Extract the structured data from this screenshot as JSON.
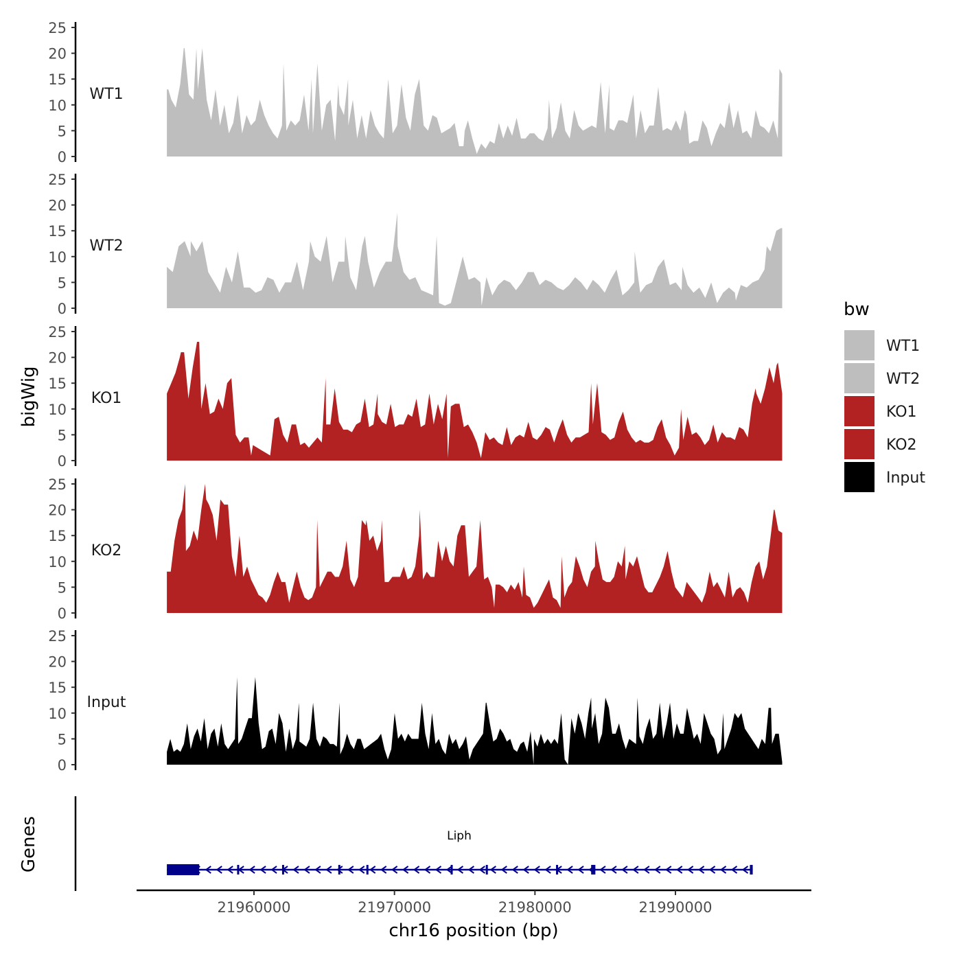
{
  "chart_data": {
    "type": "area",
    "chromosome": "chr16",
    "xlabel": "chr16 position (bp)",
    "ylabel": "bigWig",
    "genes_label": "Genes",
    "legend_title": "bw",
    "x_range": [
      21952000,
      21999000
    ],
    "data_range": [
      21953800,
      21997600
    ],
    "x_ticks": [
      21960000,
      21970000,
      21980000,
      21990000
    ],
    "x_tick_labels": [
      "21960000",
      "21970000",
      "21980000",
      "21990000"
    ],
    "ylim": [
      0,
      25
    ],
    "y_ticks": [
      0,
      5,
      10,
      15,
      20,
      25
    ],
    "y_tick_labels": [
      "0",
      "5",
      "10",
      "15",
      "20",
      "25"
    ],
    "colors": {
      "WT1": "#bebebe",
      "WT2": "#bebebe",
      "KO1": "#b22222",
      "KO2": "#b22222",
      "Input": "#000000",
      "gene": "#00008b"
    },
    "series": [
      {
        "name": "WT1",
        "values": [
          13,
          11,
          9.5,
          14,
          21,
          12,
          11,
          13,
          21,
          11,
          7,
          13,
          6,
          10,
          4.5,
          6.5,
          12,
          4.5,
          8,
          6,
          7,
          11,
          8,
          6,
          4.5,
          3.5,
          6,
          5,
          7,
          6,
          7,
          12,
          5,
          4.5,
          18,
          5,
          10,
          11,
          3,
          10,
          8,
          6,
          11,
          3.5,
          8,
          3.5,
          9,
          6,
          4.5,
          3.5,
          15,
          4.5,
          6,
          14,
          7.5,
          5,
          12,
          15,
          6,
          5,
          8,
          7.5,
          4.5,
          5,
          5.5,
          6.5,
          2,
          2,
          7,
          3.5,
          0.5,
          2.5,
          1.5,
          3,
          2.5,
          6.5,
          3.5,
          6,
          4,
          7.5,
          3.5,
          3.5,
          4.5,
          4.5,
          3.5,
          3,
          5.5,
          3.5,
          5.5,
          10.5,
          5,
          3.5,
          9,
          6,
          5,
          5.5,
          6,
          5.5,
          14.5,
          4.5,
          5.5,
          5,
          7,
          7,
          6.5,
          10.5,
          3.5,
          9,
          4.5,
          6,
          6,
          13.5,
          5,
          5.5,
          5,
          7,
          5,
          9,
          2.5,
          3,
          3,
          7,
          5.5,
          2,
          4.5,
          6.5,
          5.5,
          10.5,
          5.5,
          9,
          4.5,
          5,
          3.5,
          9,
          6,
          5.5,
          4.5,
          7,
          3.5,
          16
        ],
        "peaks": [
          [
            21953900,
            13
          ],
          [
            21955000,
            21
          ],
          [
            21955900,
            21
          ],
          [
            21962100,
            18
          ],
          [
            21964100,
            15
          ],
          [
            21966000,
            14
          ],
          [
            21966700,
            15
          ],
          [
            21975000,
            5
          ],
          [
            21981000,
            11
          ],
          [
            21985300,
            14
          ],
          [
            21987000,
            12
          ],
          [
            21990800,
            8
          ],
          [
            21997400,
            17
          ]
        ]
      },
      {
        "name": "WT2",
        "values": [
          8,
          7,
          12,
          13,
          10,
          11,
          13,
          7,
          5,
          3,
          8,
          5,
          11,
          4,
          4,
          3,
          3.5,
          6,
          5.5,
          3,
          5,
          5,
          9,
          3.5,
          9,
          10,
          9,
          14,
          5,
          9,
          9,
          6,
          3.5,
          12,
          9,
          4,
          7,
          9,
          9,
          12,
          7,
          5.5,
          6,
          3.5,
          3,
          2.5,
          1,
          0.5,
          1,
          5.5,
          10,
          5.5,
          6,
          5,
          6,
          2.5,
          4.5,
          5.5,
          5,
          3.5,
          5,
          7,
          7,
          4.5,
          5.5,
          5,
          4,
          3.5,
          4.5,
          6,
          5,
          3.5,
          5.5,
          4.5,
          3,
          5.5,
          7.5,
          2.5,
          3.5,
          5,
          3,
          4.5,
          5,
          8,
          9.5,
          4.5,
          5,
          3.5,
          4.5,
          3,
          4,
          2,
          5,
          1,
          3,
          4,
          3,
          4.5,
          4,
          5,
          5.5,
          7.5,
          11,
          15,
          15.5
        ],
        "peaks": [
          [
            21955500,
            13
          ],
          [
            21964000,
            13
          ],
          [
            21966500,
            14
          ],
          [
            21967900,
            14
          ],
          [
            21970200,
            18.5
          ],
          [
            21973000,
            14
          ],
          [
            21976200,
            0.5
          ],
          [
            21987100,
            11
          ],
          [
            21990500,
            8
          ],
          [
            21994300,
            1.5
          ],
          [
            21996500,
            12
          ],
          [
            21997500,
            15.5
          ]
        ]
      },
      {
        "name": "KO1",
        "values": [
          13,
          15,
          17,
          20,
          21,
          12,
          18,
          23,
          10,
          15,
          9,
          9.5,
          12,
          10,
          15,
          16,
          5,
          3.5,
          4.5,
          4.5,
          3,
          2.5,
          2,
          1.5,
          1,
          8,
          8.5,
          5,
          3.5,
          7,
          7,
          3,
          3.5,
          2.5,
          3.5,
          4.5,
          3.5,
          7,
          7,
          14,
          7.5,
          6,
          6,
          5.5,
          7,
          7.5,
          12,
          6.5,
          7,
          9,
          7.5,
          7,
          11,
          6.5,
          7,
          7,
          9,
          8.5,
          12,
          6.5,
          7,
          13,
          7,
          11,
          8,
          13,
          10.5,
          11,
          11,
          6.5,
          7,
          5.5,
          3.5,
          0.5,
          5.5,
          4,
          4.5,
          3.5,
          3,
          6.5,
          3,
          4.5,
          5,
          4.5,
          7.5,
          4.5,
          4,
          5,
          6.5,
          6,
          3.5,
          6,
          8,
          5,
          3.5,
          4.5,
          4.5,
          5,
          5.5,
          7,
          15,
          5.5,
          5,
          4,
          4.5,
          7.5,
          9.5,
          6,
          4.5,
          3.5,
          4,
          3.5,
          3.5,
          4,
          6.5,
          8,
          4.5,
          3,
          1,
          2.5,
          4,
          8.5,
          5,
          5.5,
          4.5,
          3,
          4,
          7,
          3.5,
          5.5,
          4.5,
          4.5,
          4,
          6.5,
          6,
          4.5,
          11,
          13,
          11,
          14,
          18,
          15,
          19,
          13
        ],
        "peaks": [
          [
            21954800,
            21
          ],
          [
            21956100,
            23
          ],
          [
            21959800,
            1
          ],
          [
            21965100,
            16
          ],
          [
            21968800,
            13
          ],
          [
            21973800,
            0.5
          ],
          [
            21984000,
            15
          ],
          [
            21990400,
            10
          ],
          [
            21995700,
            14
          ],
          [
            21996700,
            18
          ],
          [
            21997200,
            18.5
          ]
        ]
      },
      {
        "name": "KO2",
        "values": [
          8,
          8,
          14,
          18,
          20,
          12,
          13,
          16,
          14,
          20,
          25,
          21,
          19,
          14,
          22,
          21,
          21,
          11,
          7,
          15,
          7,
          9,
          6.5,
          5,
          3.5,
          3,
          2,
          3.5,
          6,
          8,
          6,
          6,
          2,
          5,
          8,
          5,
          3,
          2.5,
          3,
          5,
          5,
          6.5,
          8,
          8,
          7,
          7,
          9,
          14,
          6.5,
          5,
          7,
          18,
          17,
          14,
          15,
          12,
          14,
          6,
          6,
          7,
          7,
          7,
          9,
          6.5,
          7,
          9,
          15,
          6.5,
          8,
          7,
          7,
          14,
          10,
          13,
          10,
          9,
          15,
          17,
          17,
          7,
          8,
          9,
          18,
          6.5,
          7,
          5,
          5.5,
          5.5,
          5,
          4,
          5.5,
          4.5,
          6,
          3,
          3.5,
          3,
          1,
          2,
          3.5,
          5,
          6.5,
          3,
          2.5,
          1,
          3,
          5,
          6,
          11,
          9,
          6.5,
          5,
          8,
          9,
          10,
          6.5,
          6,
          6,
          7,
          10,
          9,
          6.5,
          10,
          9,
          11,
          8,
          5,
          4,
          4,
          5.5,
          7,
          9,
          12,
          8,
          5,
          4,
          3,
          6,
          5,
          4,
          3,
          2,
          4,
          8,
          5,
          6,
          4.5,
          3,
          8,
          3,
          4.5,
          5,
          4,
          2,
          6,
          9,
          10,
          6.5,
          9,
          15,
          20,
          16,
          15.5
        ],
        "peaks": [
          [
            21955100,
            25
          ],
          [
            21956600,
            22
          ],
          [
            21964500,
            18
          ],
          [
            21968000,
            18
          ],
          [
            21969100,
            18
          ],
          [
            21971800,
            20
          ],
          [
            21977100,
            1
          ],
          [
            21979200,
            9
          ],
          [
            21981900,
            11
          ],
          [
            21984300,
            14
          ],
          [
            21986400,
            13
          ],
          [
            21997000,
            20
          ]
        ]
      },
      {
        "name": "Input",
        "values": [
          2.5,
          5,
          2.5,
          3,
          2.5,
          4,
          8,
          3,
          5.5,
          7,
          4.5,
          9,
          3,
          6,
          7,
          3.5,
          8,
          4,
          3,
          4,
          5,
          4,
          5,
          7,
          9,
          9,
          17,
          8,
          3,
          3.5,
          6.5,
          7,
          4,
          10,
          8,
          2.5,
          7,
          3,
          5,
          4.5,
          4,
          3.5,
          5,
          12,
          5,
          3.5,
          5.5,
          5,
          4,
          4,
          3.5,
          2,
          3.5,
          6,
          4,
          3,
          5,
          5,
          3,
          3.5,
          4,
          4.5,
          5,
          6,
          3,
          1,
          3,
          10,
          5,
          6,
          4.5,
          6,
          5,
          5,
          5,
          12,
          6,
          3,
          10,
          4,
          5,
          3,
          2,
          6,
          4,
          5,
          3,
          4,
          5.5,
          1,
          3,
          4,
          5,
          6,
          12,
          8,
          4.5,
          5,
          7,
          6,
          4.5,
          5,
          3,
          2.5,
          4,
          4.5,
          2.5,
          6.5,
          5,
          3.5,
          6,
          4,
          5,
          4,
          5,
          4,
          10,
          1,
          0,
          9,
          6,
          10,
          8,
          5,
          10,
          7,
          10,
          4,
          6,
          13,
          11,
          6,
          6,
          8,
          5,
          3,
          5,
          4.5,
          4,
          5.5,
          4,
          7,
          9,
          5,
          6,
          12,
          5,
          8,
          12,
          5,
          8,
          6,
          6,
          11,
          8,
          5,
          6,
          4,
          10,
          8,
          6,
          5,
          2,
          3,
          3,
          5,
          7,
          10,
          9,
          10,
          7,
          6,
          5,
          4,
          3,
          5,
          4,
          11,
          4,
          6,
          6,
          0.5
        ],
        "peaks": [
          [
            21958800,
            17
          ],
          [
            21963200,
            12
          ],
          [
            21966100,
            12
          ],
          [
            21976500,
            12
          ],
          [
            21979900,
            0
          ],
          [
            21984000,
            13
          ],
          [
            21987300,
            13
          ],
          [
            21993400,
            10
          ],
          [
            21996800,
            11
          ]
        ]
      }
    ],
    "legend": [
      "WT1",
      "WT2",
      "KO1",
      "KO2",
      "Input"
    ],
    "gene": {
      "name": "Liph",
      "strand": "-",
      "start": 21953800,
      "end": 21995500,
      "exons": [
        [
          21953800,
          21956100
        ],
        [
          21958800,
          21958850
        ],
        [
          21962000,
          21962050
        ],
        [
          21966000,
          21966050
        ],
        [
          21968000,
          21968100
        ],
        [
          21974000,
          21974050
        ],
        [
          21976500,
          21976550
        ],
        [
          21981500,
          21981550
        ],
        [
          21984000,
          21984300
        ],
        [
          21995300,
          21995500
        ]
      ]
    }
  }
}
